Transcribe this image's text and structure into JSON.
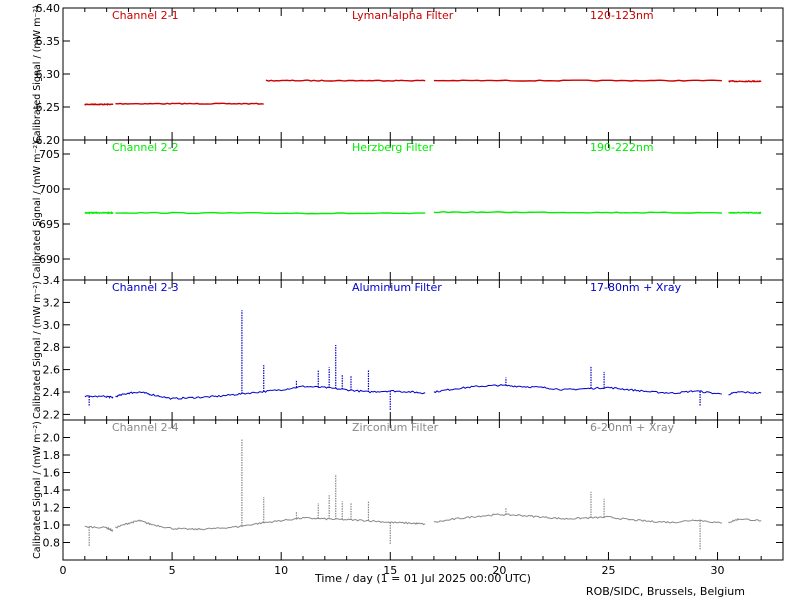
{
  "figure": {
    "x_axis_label": "Time / day (1 = 01 Jul 2025 00:00 UTC)",
    "credit": "ROB/SIDC, Brussels, Belgium",
    "x_ticks": [
      "0",
      "5",
      "10",
      "15",
      "20",
      "25",
      "30"
    ]
  },
  "chart_data": [
    {
      "type": "line",
      "channel": "Channel 2-1",
      "filter": "Lyman-alpha Filter",
      "band": "120-123nm",
      "color": "#cc0000",
      "ylabel": "Calibrated Signal / (mW m⁻²)",
      "ylim": [
        6.2,
        6.4
      ],
      "y_ticks": [
        "6.20",
        "6.25",
        "6.30",
        "6.35",
        "6.40"
      ],
      "xlim": [
        0,
        33
      ],
      "gaps": [
        [
          16.7,
          17.0
        ],
        [
          30.3,
          30.5
        ]
      ],
      "segments": [
        {
          "x": [
            1.0,
            2.3
          ],
          "y": [
            6.254,
            6.254
          ]
        },
        {
          "x": [
            2.4,
            9.2
          ],
          "y": [
            6.255,
            6.255
          ]
        },
        {
          "x": [
            9.3,
            16.6
          ],
          "y": [
            6.29,
            6.29
          ]
        },
        {
          "x": [
            17.0,
            30.2
          ],
          "y": [
            6.29,
            6.29
          ]
        },
        {
          "x": [
            30.5,
            32.0
          ],
          "y": [
            6.289,
            6.289
          ]
        }
      ]
    },
    {
      "type": "line",
      "channel": "Channel 2-2",
      "filter": "Herzberg Filter",
      "band": "190-222nm",
      "color": "#00ee00",
      "ylabel": "Calibrated Signal / (mW m⁻²)",
      "ylim": [
        687,
        707
      ],
      "y_ticks": [
        "690",
        "695",
        "700",
        "705"
      ],
      "xlim": [
        0,
        33
      ],
      "segments": [
        {
          "x": [
            1.0,
            2.3
          ],
          "y": [
            696.6,
            696.6
          ]
        },
        {
          "x": [
            2.4,
            16.6
          ],
          "y": [
            696.6,
            696.5
          ]
        },
        {
          "x": [
            17.0,
            30.2
          ],
          "y": [
            696.7,
            696.6
          ]
        },
        {
          "x": [
            30.5,
            32.0
          ],
          "y": [
            696.6,
            696.6
          ]
        }
      ]
    },
    {
      "type": "line",
      "channel": "Channel 2-3",
      "filter": "Aluminium Filter",
      "band": "17-80nm + Xray",
      "color": "#0000cc",
      "ylabel": "Calibrated Signal / (mW m⁻²)",
      "ylim": [
        2.15,
        3.4
      ],
      "y_ticks": [
        "2.2",
        "2.4",
        "2.6",
        "2.8",
        "3.0",
        "3.2",
        "3.4"
      ],
      "xlim": [
        0,
        33
      ],
      "baseline": {
        "x": [
          1.0,
          2.0,
          2.3,
          2.4,
          3.0,
          3.5,
          4.0,
          5.0,
          6.0,
          7.0,
          8.0,
          9.0,
          10.0,
          11.0,
          12.0,
          13.0,
          14.0,
          15.0,
          16.0,
          16.6,
          17.0,
          18.0,
          19.0,
          20.0,
          21.0,
          22.0,
          23.0,
          24.0,
          25.0,
          26.0,
          27.0,
          28.0,
          29.0,
          30.2,
          30.5,
          31.0,
          32.0
        ],
        "y": [
          2.36,
          2.36,
          2.35,
          2.36,
          2.39,
          2.4,
          2.38,
          2.34,
          2.35,
          2.36,
          2.38,
          2.4,
          2.42,
          2.45,
          2.44,
          2.42,
          2.4,
          2.41,
          2.4,
          2.39,
          2.4,
          2.43,
          2.45,
          2.46,
          2.45,
          2.44,
          2.42,
          2.43,
          2.44,
          2.42,
          2.4,
          2.39,
          2.41,
          2.38,
          2.38,
          2.4,
          2.39
        ]
      },
      "spikes": [
        {
          "x": 8.2,
          "y": 3.13
        },
        {
          "x": 9.2,
          "y": 2.64
        },
        {
          "x": 10.7,
          "y": 2.5
        },
        {
          "x": 11.7,
          "y": 2.6
        },
        {
          "x": 12.2,
          "y": 2.62
        },
        {
          "x": 12.5,
          "y": 2.82
        },
        {
          "x": 12.8,
          "y": 2.55
        },
        {
          "x": 13.2,
          "y": 2.55
        },
        {
          "x": 14.0,
          "y": 2.6
        },
        {
          "x": 20.3,
          "y": 2.53
        },
        {
          "x": 24.2,
          "y": 2.63
        },
        {
          "x": 24.8,
          "y": 2.58
        },
        {
          "x": 1.2,
          "y": 2.27
        },
        {
          "x": 15.0,
          "y": 2.24
        },
        {
          "x": 29.2,
          "y": 2.27
        }
      ]
    },
    {
      "type": "line",
      "channel": "Channel 2-4",
      "filter": "Zirconium Filter",
      "band": "6-20nm + Xray",
      "color": "#888888",
      "ylabel": "Calibrated Signal / (mW m⁻²)",
      "ylim": [
        0.6,
        2.2
      ],
      "y_ticks": [
        "0.8",
        "1.0",
        "1.2",
        "1.4",
        "1.6",
        "1.8",
        "2.0"
      ],
      "xlim": [
        0,
        33
      ],
      "baseline": {
        "x": [
          1.0,
          2.0,
          2.3,
          2.4,
          3.0,
          3.5,
          4.0,
          5.0,
          6.0,
          7.0,
          8.0,
          9.0,
          10.0,
          11.0,
          12.0,
          13.0,
          14.0,
          15.0,
          16.0,
          16.6,
          17.0,
          18.0,
          19.0,
          20.0,
          21.0,
          22.0,
          23.0,
          24.0,
          25.0,
          26.0,
          27.0,
          28.0,
          29.0,
          30.2,
          30.5,
          31.0,
          32.0
        ],
        "y": [
          0.98,
          0.97,
          0.93,
          0.97,
          1.02,
          1.05,
          1.01,
          0.96,
          0.95,
          0.96,
          0.98,
          1.02,
          1.05,
          1.08,
          1.07,
          1.06,
          1.05,
          1.03,
          1.02,
          1.01,
          1.03,
          1.07,
          1.1,
          1.12,
          1.11,
          1.09,
          1.07,
          1.08,
          1.09,
          1.06,
          1.04,
          1.03,
          1.06,
          1.02,
          1.03,
          1.07,
          1.05
        ]
      },
      "spikes": [
        {
          "x": 8.2,
          "y": 1.98
        },
        {
          "x": 9.2,
          "y": 1.32
        },
        {
          "x": 10.7,
          "y": 1.15
        },
        {
          "x": 11.7,
          "y": 1.25
        },
        {
          "x": 12.2,
          "y": 1.34
        },
        {
          "x": 12.5,
          "y": 1.58
        },
        {
          "x": 12.8,
          "y": 1.27
        },
        {
          "x": 13.2,
          "y": 1.25
        },
        {
          "x": 14.0,
          "y": 1.27
        },
        {
          "x": 20.3,
          "y": 1.2
        },
        {
          "x": 24.2,
          "y": 1.38
        },
        {
          "x": 24.8,
          "y": 1.3
        },
        {
          "x": 1.2,
          "y": 0.75
        },
        {
          "x": 15.0,
          "y": 0.78
        },
        {
          "x": 29.2,
          "y": 0.72
        }
      ]
    }
  ]
}
